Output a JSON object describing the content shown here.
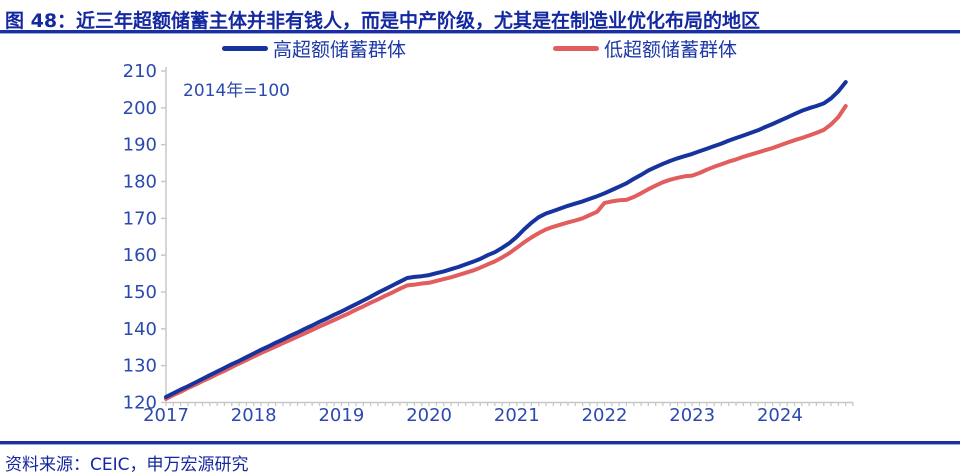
{
  "header": {
    "title": "图 48：近三年超额储蓄主体并非有钱人，而是中产阶级，尤其是在制造业优化布局的地区"
  },
  "footer": {
    "source": "资料来源：CEIC，申万宏源研究"
  },
  "colors": {
    "navy_text": "#1428A0",
    "axis_label_blue": "#2C4AAE",
    "axis_gray": "#C8C8C8",
    "line_high": "#16339E",
    "line_low": "#E25D5D"
  },
  "chart_data": {
    "type": "line",
    "title": "",
    "annotation": "2014年=100",
    "x_frequency": "monthly",
    "x_start": "2017-01",
    "x_end": "2024-10",
    "xticks": [
      2017,
      2018,
      2019,
      2020,
      2021,
      2022,
      2023,
      2024
    ],
    "yticks": [
      120,
      130,
      140,
      150,
      160,
      170,
      180,
      190,
      200,
      210
    ],
    "ylim": [
      120,
      210
    ],
    "grid": false,
    "legend_position": "top",
    "series": [
      {
        "name": "高超额储蓄群体",
        "color": "#16339E",
        "values": [
          121.5,
          122.5,
          123.5,
          124.4,
          125.4,
          126.4,
          127.4,
          128.4,
          129.4,
          130.4,
          131.3,
          132.3,
          133.3,
          134.3,
          135.2,
          136.2,
          137.1,
          138.1,
          139.0,
          140.0,
          140.9,
          141.9,
          142.8,
          143.8,
          144.7,
          145.7,
          146.7,
          147.7,
          148.7,
          149.8,
          150.8,
          151.8,
          152.8,
          153.8,
          154.1,
          154.3,
          154.6,
          155.1,
          155.6,
          156.2,
          156.8,
          157.5,
          158.2,
          159.0,
          160.0,
          160.8,
          162.0,
          163.3,
          165.0,
          167.0,
          168.8,
          170.3,
          171.3,
          172.0,
          172.7,
          173.4,
          174.0,
          174.6,
          175.3,
          176.0,
          176.8,
          177.7,
          178.6,
          179.5,
          180.7,
          181.8,
          183.0,
          183.9,
          184.8,
          185.6,
          186.3,
          186.9,
          187.5,
          188.2,
          188.9,
          189.6,
          190.3,
          191.1,
          191.8,
          192.5,
          193.2,
          193.9,
          194.8,
          195.6,
          196.5,
          197.4,
          198.3,
          199.2,
          199.9,
          200.5,
          201.2,
          202.6,
          204.5,
          207.0
        ]
      },
      {
        "name": "低超额储蓄群体",
        "color": "#E25D5D",
        "values": [
          121.0,
          122.0,
          122.9,
          123.9,
          124.8,
          125.8,
          126.7,
          127.7,
          128.6,
          129.6,
          130.6,
          131.5,
          132.5,
          133.4,
          134.3,
          135.2,
          136.1,
          137.0,
          137.9,
          138.8,
          139.7,
          140.6,
          141.5,
          142.4,
          143.3,
          144.2,
          145.2,
          146.1,
          147.1,
          148.0,
          149.0,
          149.9,
          150.9,
          151.8,
          152.0,
          152.3,
          152.5,
          153.0,
          153.5,
          154.0,
          154.6,
          155.2,
          155.8,
          156.6,
          157.5,
          158.3,
          159.4,
          160.6,
          162.0,
          163.5,
          164.8,
          166.0,
          167.0,
          167.7,
          168.3,
          168.9,
          169.4,
          170.0,
          170.9,
          171.8,
          174.2,
          174.6,
          174.9,
          175.0,
          175.8,
          176.8,
          177.9,
          178.9,
          179.8,
          180.5,
          181.0,
          181.4,
          181.6,
          182.3,
          183.2,
          184.0,
          184.7,
          185.4,
          186.0,
          186.7,
          187.3,
          187.9,
          188.5,
          189.1,
          189.8,
          190.5,
          191.2,
          191.8,
          192.5,
          193.2,
          194.0,
          195.5,
          197.5,
          200.5
        ]
      }
    ]
  }
}
